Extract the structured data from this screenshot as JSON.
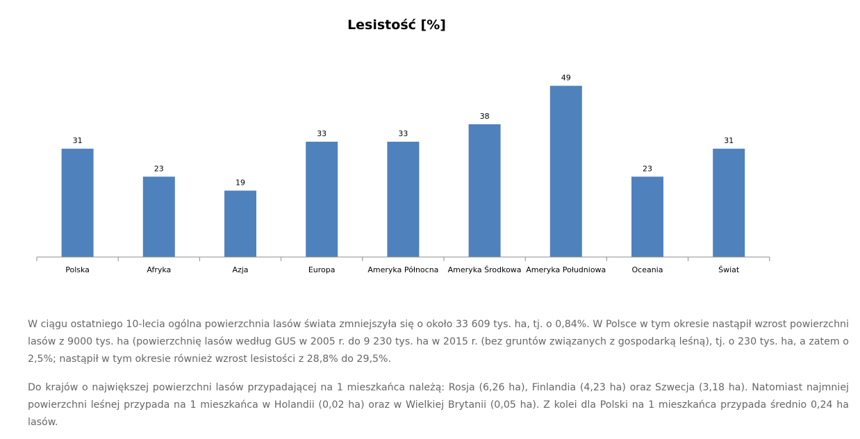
{
  "chart_data": {
    "type": "bar",
    "title": "Lesistość [%]",
    "categories": [
      "Polska",
      "Afryka",
      "Azja",
      "Europa",
      "Ameryka Północna",
      "Ameryka Środkowa",
      "Ameryka Południowa",
      "Oceania",
      "Świat"
    ],
    "values": [
      31,
      23,
      19,
      33,
      33,
      38,
      49,
      23,
      31
    ],
    "data_labels": true,
    "legend": "none",
    "grid": false,
    "ylim": [
      0,
      50
    ],
    "colors": {
      "bar": "#4f81bd",
      "axis": "#8c8c8c"
    }
  },
  "text": {
    "paragraph1": "W ciągu ostatniego 10-lecia ogólna powierzchnia lasów świata zmniejszyła się o około 33 609 tys. ha, tj. o 0,84%. W Polsce w tym okresie nastąpił wzrost powierzchni lasów z 9000 tys. ha (powierzchnię lasów według GUS w 2005 r. do 9 230  tys. ha w 2015 r. (bez gruntów związanych z gospodarką leśną), tj. o 230 tys. ha, a zatem o 2,5%; nastąpił w tym okresie również wzrost lesistości z 28,8% do 29,5%.",
    "paragraph2": "Do krajów o największej powierzchni lasów przypadającej na 1 mieszkańca należą: Rosja (6,26 ha), Finlandia (4,23 ha) oraz Szwecja (3,18 ha). Natomiast najmniej powierzchni leśnej przypada na 1 mieszkańca w Holandii (0,02 ha) oraz w Wielkiej Brytanii (0,05 ha). Z kolei dla Polski na 1 mieszkańca przypada średnio 0,24 ha lasów."
  }
}
